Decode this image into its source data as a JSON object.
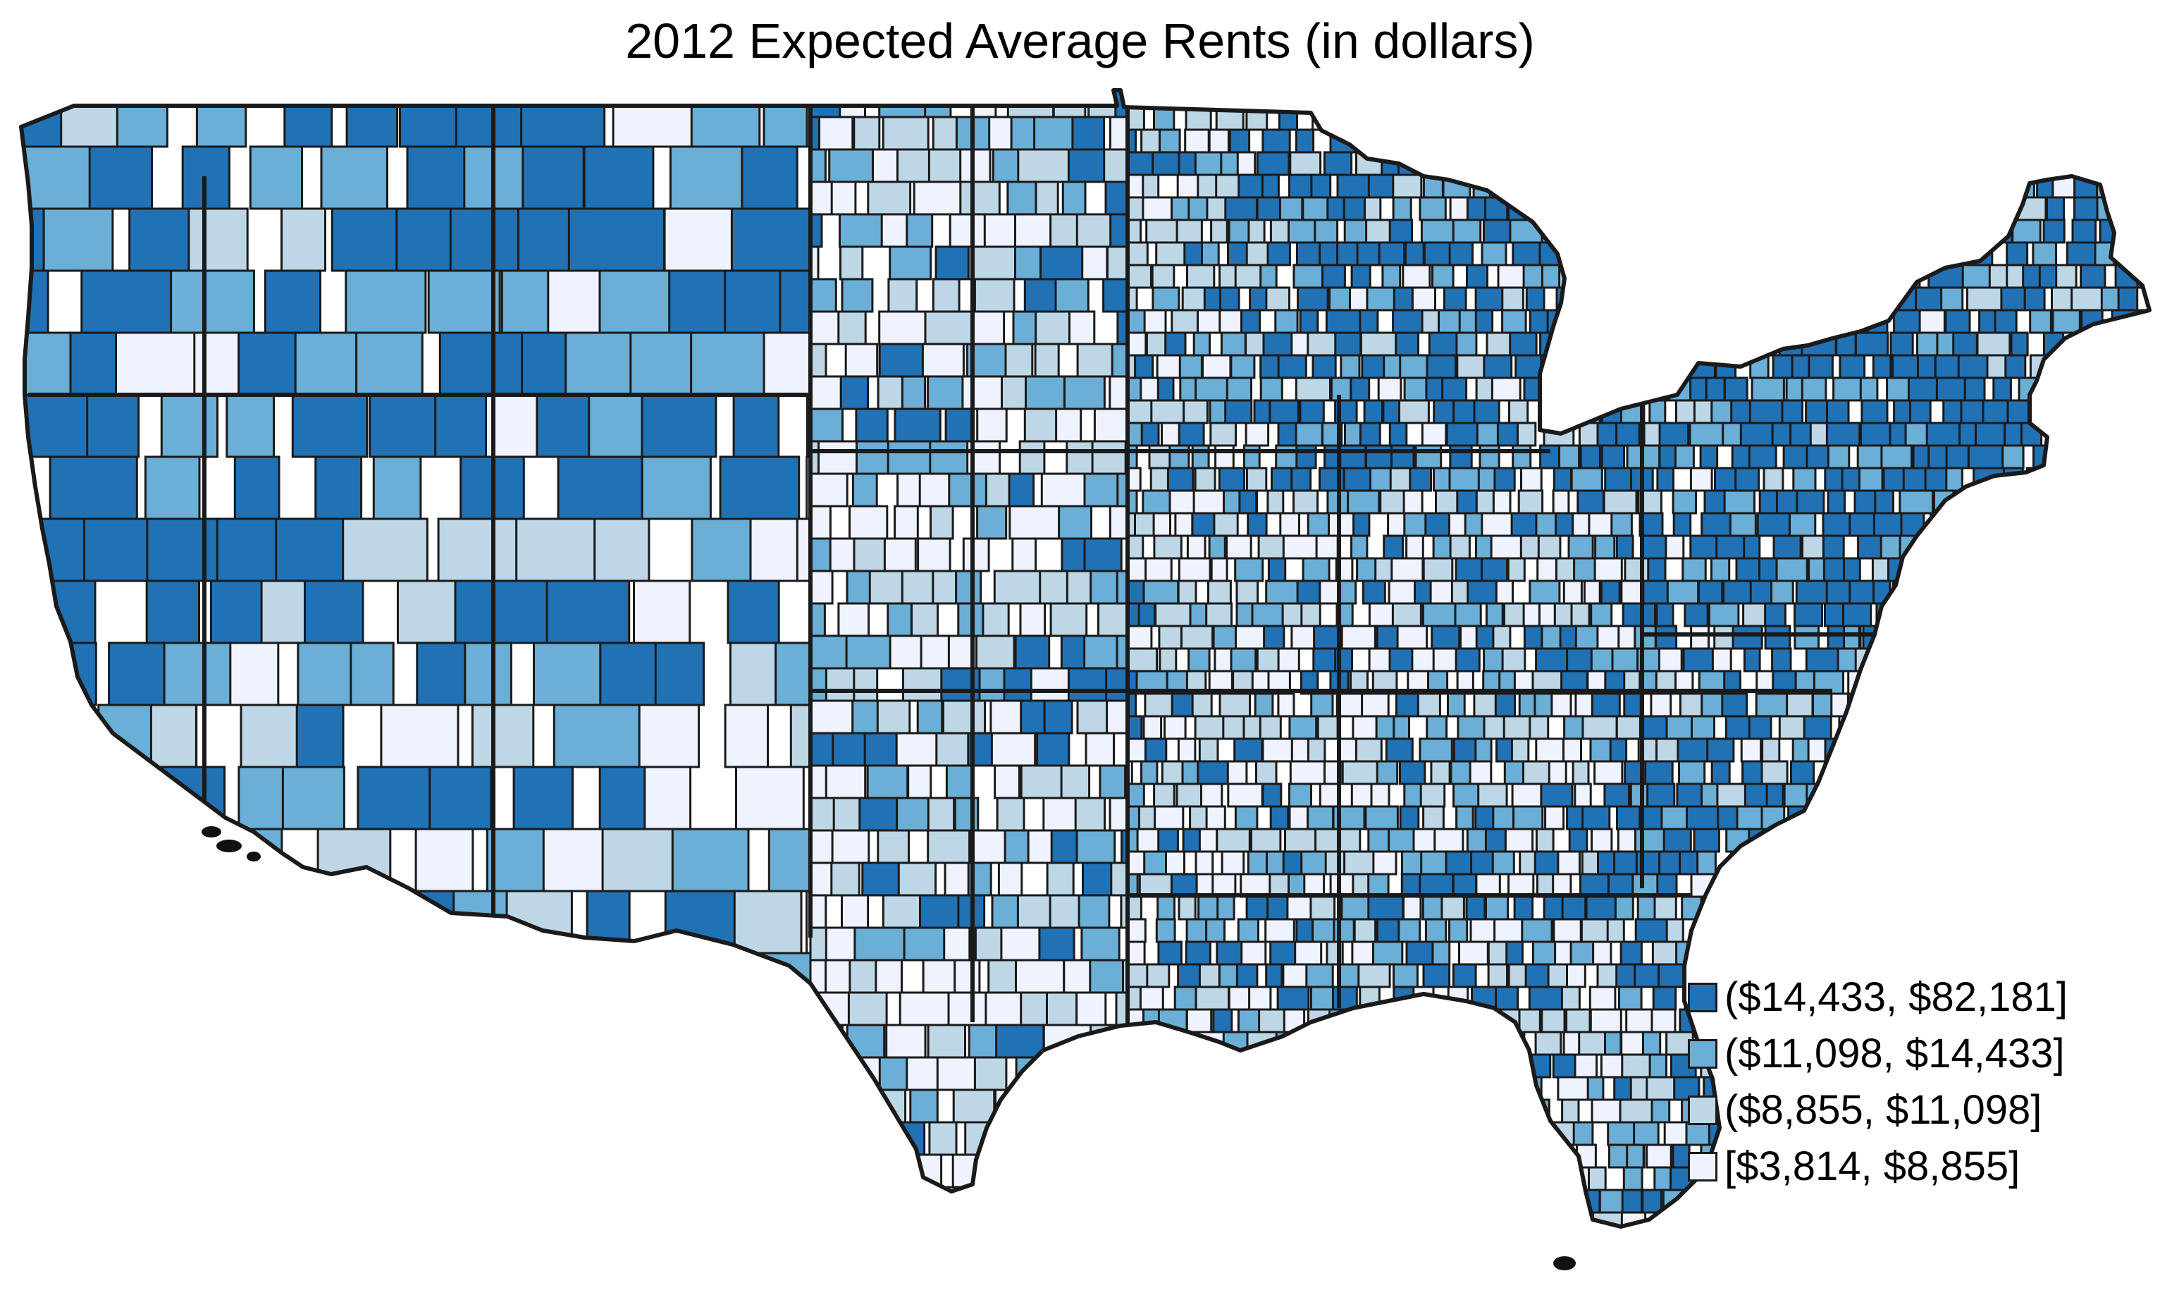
{
  "title": "2012 Expected Average Rents (in dollars)",
  "legend": [
    {
      "label": "($14,433, $82,181]",
      "color": "#2171b5",
      "range": [
        14433,
        82181
      ]
    },
    {
      "label": "($11,098, $14,433]",
      "color": "#6baed6",
      "range": [
        11098,
        14433
      ]
    },
    {
      "label": "($8,855, $11,098]",
      "color": "#bdd7e7",
      "range": [
        8855,
        11098
      ]
    },
    {
      "label": "[$3,814, $8,855]",
      "color": "#eff3ff",
      "range": [
        3814,
        8855
      ]
    }
  ],
  "boundary_color": "#1a1a1a"
}
